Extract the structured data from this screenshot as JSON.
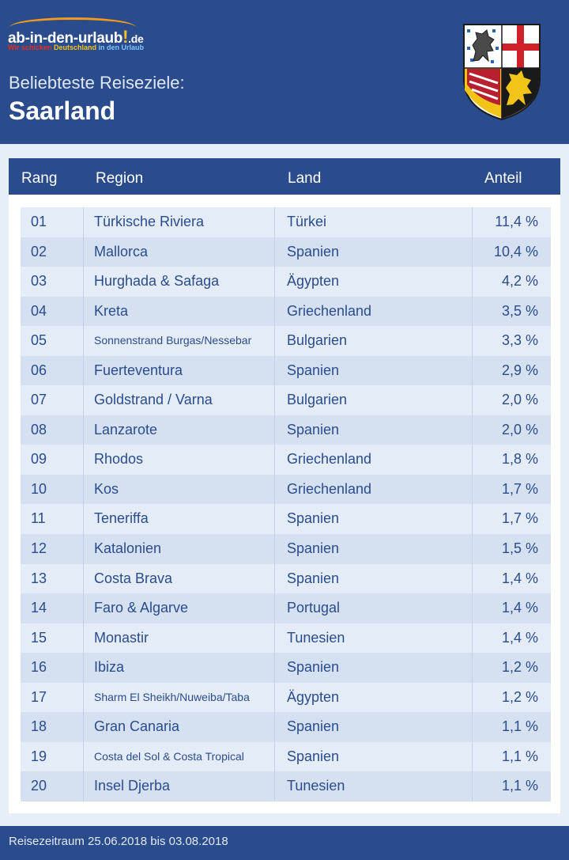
{
  "brand": {
    "name_main": "ab-in-den-urlaub",
    "name_bang": "!",
    "name_tld": ".de",
    "slogan_1": "Wir schicken ",
    "slogan_2": "Deutschland",
    "slogan_3": " in den Urlaub"
  },
  "header": {
    "subtitle": "Beliebteste Reiseziele:",
    "title": "Saarland"
  },
  "table": {
    "columns": {
      "rang": "Rang",
      "region": "Region",
      "land": "Land",
      "anteil": "Anteil"
    },
    "rows": [
      {
        "rang": "01",
        "region": "Türkische Riviera",
        "land": "Türkei",
        "anteil": "11,4 %"
      },
      {
        "rang": "02",
        "region": "Mallorca",
        "land": "Spanien",
        "anteil": "10,4 %"
      },
      {
        "rang": "03",
        "region": "Hurghada & Safaga",
        "land": "Ägypten",
        "anteil": "4,2 %"
      },
      {
        "rang": "04",
        "region": "Kreta",
        "land": "Griechenland",
        "anteil": "3,5 %"
      },
      {
        "rang": "05",
        "region": "Sonnenstrand Burgas/Nessebar",
        "land": "Bulgarien",
        "anteil": "3,3 %"
      },
      {
        "rang": "06",
        "region": "Fuerteventura",
        "land": "Spanien",
        "anteil": "2,9 %"
      },
      {
        "rang": "07",
        "region": "Goldstrand / Varna",
        "land": "Bulgarien",
        "anteil": "2,0 %"
      },
      {
        "rang": "08",
        "region": "Lanzarote",
        "land": "Spanien",
        "anteil": "2,0 %"
      },
      {
        "rang": "09",
        "region": "Rhodos",
        "land": "Griechenland",
        "anteil": "1,8 %"
      },
      {
        "rang": "10",
        "region": "Kos",
        "land": "Griechenland",
        "anteil": "1,7 %"
      },
      {
        "rang": "11",
        "region": "Teneriffa",
        "land": "Spanien",
        "anteil": "1,7 %"
      },
      {
        "rang": "12",
        "region": "Katalonien",
        "land": "Spanien",
        "anteil": "1,5 %"
      },
      {
        "rang": "13",
        "region": "Costa Brava",
        "land": "Spanien",
        "anteil": "1,4 %"
      },
      {
        "rang": "14",
        "region": "Faro & Algarve",
        "land": "Portugal",
        "anteil": "1,4 %"
      },
      {
        "rang": "15",
        "region": "Monastir",
        "land": "Tunesien",
        "anteil": "1,4 %"
      },
      {
        "rang": "16",
        "region": "Ibiza",
        "land": "Spanien",
        "anteil": "1,2 %"
      },
      {
        "rang": "17",
        "region": "Sharm El Sheikh/Nuweiba/Taba",
        "land": "Ägypten",
        "anteil": "1,2 %"
      },
      {
        "rang": "18",
        "region": "Gran Canaria",
        "land": "Spanien",
        "anteil": "1,1 %"
      },
      {
        "rang": "19",
        "region": "Costa del Sol & Costa Tropical",
        "land": "Spanien",
        "anteil": "1,1 %"
      },
      {
        "rang": "20",
        "region": "Insel Djerba",
        "land": "Tunesien",
        "anteil": "1,1 %"
      }
    ]
  },
  "footer": {
    "text": "Reisezeitraum 25.06.2018 bis 03.08.2018"
  },
  "colors": {
    "brand_blue": "#2b4c8c",
    "row_light": "#e4ecf8",
    "row_dark": "#d5e1f1",
    "accent_orange": "#f39a1a",
    "accent_yellow": "#f7c31a"
  },
  "icons": {
    "crest": "saarland-coat-of-arms-icon"
  }
}
